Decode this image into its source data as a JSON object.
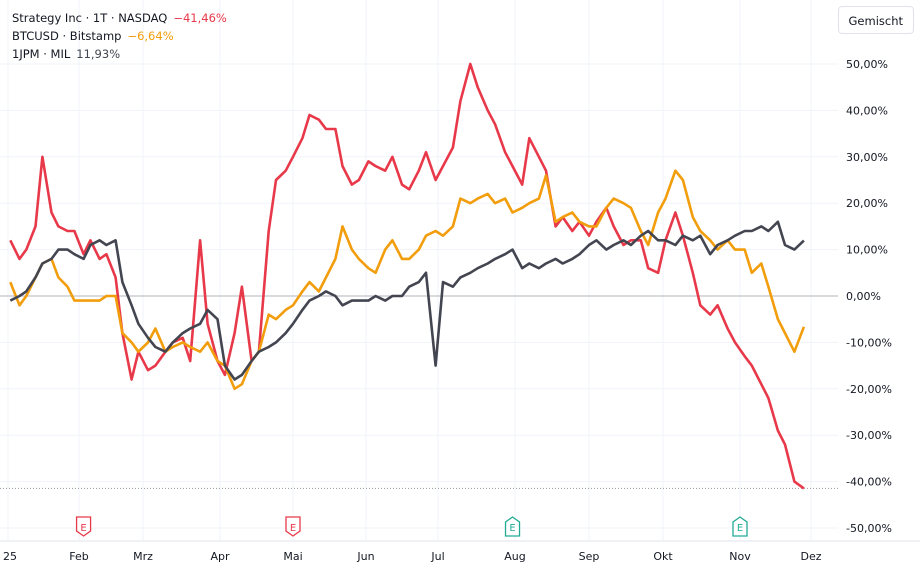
{
  "legend": [
    {
      "name": "Strategy Inc · 1T · NASDAQ",
      "value": "−41,46%",
      "color": "#e8394a"
    },
    {
      "name": "BTCUSD · Bitstamp",
      "value": "−6,64%",
      "color": "#f29d0c"
    },
    {
      "name": "1JPM · MIL",
      "value": "11,93%",
      "color": "#434651"
    }
  ],
  "toolbar": {
    "mode_button": "Gemischt"
  },
  "chart_data": {
    "type": "line",
    "yunit": "%",
    "ylim": [
      -50,
      50
    ],
    "yticks": [
      "50,00%",
      "40,00%",
      "30,00%",
      "20,00%",
      "10,00%",
      "0,00%",
      "-10,00%",
      "-20,00%",
      "-30,00%",
      "-40,00%",
      "-50,00%"
    ],
    "ytick_values": [
      50,
      40,
      30,
      20,
      10,
      0,
      -10,
      -20,
      -30,
      -40,
      -50
    ],
    "xticks": [
      {
        "label": "25",
        "date": "2025-01-01"
      },
      {
        "label": "Feb",
        "date": "2025-02-01"
      },
      {
        "label": "Mrz",
        "date": "2025-03-01"
      },
      {
        "label": "Apr",
        "date": "2025-04-01"
      },
      {
        "label": "Mai",
        "date": "2025-05-01"
      },
      {
        "label": "Jun",
        "date": "2025-06-01"
      },
      {
        "label": "Jul",
        "date": "2025-07-01"
      },
      {
        "label": "Aug",
        "date": "2025-08-01"
      },
      {
        "label": "Sep",
        "date": "2025-09-01"
      },
      {
        "label": "Okt",
        "date": "2025-10-01"
      },
      {
        "label": "Nov",
        "date": "2025-11-01"
      },
      {
        "label": "Dez",
        "date": "2025-12-01"
      }
    ],
    "grid": true,
    "legend_position": "top-left",
    "earnings_markers": [
      {
        "label": "E",
        "date": "2025-02-03",
        "color": "#e8394a"
      },
      {
        "label": "E",
        "date": "2025-05-01",
        "color": "#e8394a"
      },
      {
        "label": "E",
        "date": "2025-07-31",
        "color": "#22ab94"
      },
      {
        "label": "E",
        "date": "2025-11-01",
        "color": "#22ab94"
      }
    ],
    "last_value_line": -41.46,
    "x": [
      "2025-01-02",
      "2025-01-06",
      "2025-01-09",
      "2025-01-13",
      "2025-01-16",
      "2025-01-20",
      "2025-01-23",
      "2025-01-27",
      "2025-01-30",
      "2025-02-03",
      "2025-02-06",
      "2025-02-10",
      "2025-02-13",
      "2025-02-17",
      "2025-02-20",
      "2025-02-24",
      "2025-02-27",
      "2025-03-03",
      "2025-03-06",
      "2025-03-10",
      "2025-03-13",
      "2025-03-17",
      "2025-03-20",
      "2025-03-24",
      "2025-03-27",
      "2025-03-31",
      "2025-04-03",
      "2025-04-07",
      "2025-04-10",
      "2025-04-14",
      "2025-04-17",
      "2025-04-21",
      "2025-04-24",
      "2025-04-28",
      "2025-05-01",
      "2025-05-05",
      "2025-05-08",
      "2025-05-12",
      "2025-05-15",
      "2025-05-19",
      "2025-05-22",
      "2025-05-26",
      "2025-05-29",
      "2025-06-02",
      "2025-06-05",
      "2025-06-09",
      "2025-06-12",
      "2025-06-16",
      "2025-06-19",
      "2025-06-23",
      "2025-06-26",
      "2025-06-30",
      "2025-07-03",
      "2025-07-07",
      "2025-07-10",
      "2025-07-14",
      "2025-07-17",
      "2025-07-21",
      "2025-07-24",
      "2025-07-28",
      "2025-07-31",
      "2025-08-04",
      "2025-08-07",
      "2025-08-11",
      "2025-08-14",
      "2025-08-18",
      "2025-08-21",
      "2025-08-25",
      "2025-08-28",
      "2025-09-01",
      "2025-09-04",
      "2025-09-08",
      "2025-09-11",
      "2025-09-15",
      "2025-09-18",
      "2025-09-22",
      "2025-09-25",
      "2025-09-29",
      "2025-10-02",
      "2025-10-06",
      "2025-10-09",
      "2025-10-13",
      "2025-10-16",
      "2025-10-20",
      "2025-10-23",
      "2025-10-27",
      "2025-10-30",
      "2025-11-03",
      "2025-11-06",
      "2025-11-10",
      "2025-11-13",
      "2025-11-17",
      "2025-11-20",
      "2025-11-24",
      "2025-11-28"
    ],
    "series": [
      {
        "name": "Strategy Inc · 1T · NASDAQ",
        "color": "#e8394a",
        "values": [
          12,
          8,
          10,
          15,
          30,
          18,
          15,
          14,
          14,
          9,
          12,
          8,
          9,
          4,
          -8,
          -18,
          -12,
          -16,
          -15,
          -12,
          -10,
          -9,
          -14,
          12,
          -6,
          -14,
          -17,
          -8,
          2,
          -14,
          -12,
          14,
          25,
          27,
          30,
          34,
          39,
          38,
          36,
          36,
          28,
          24,
          25,
          29,
          28,
          27,
          30,
          24,
          23,
          27,
          31,
          25,
          28,
          32,
          42,
          50,
          45,
          40,
          37,
          31,
          28,
          24,
          34,
          30,
          27,
          15,
          17,
          14,
          16,
          13,
          16,
          19,
          15,
          11,
          12,
          12,
          6,
          5,
          12,
          18,
          13,
          5,
          -2,
          -4,
          -2,
          -7,
          -10,
          -13,
          -15,
          -19,
          -22,
          -29,
          -32,
          -40,
          -41.46
        ]
      },
      {
        "name": "BTCUSD · Bitstamp",
        "color": "#f29d0c",
        "values": [
          3,
          -2,
          0,
          4,
          7,
          8,
          4,
          2,
          -1,
          -1,
          -1,
          -1,
          0,
          0,
          -8,
          -10,
          -12,
          -10,
          -7,
          -12,
          -11,
          -10,
          -11,
          -12,
          -10,
          -14,
          -15,
          -20,
          -19,
          -14,
          -12,
          -4,
          -5,
          -3,
          -2,
          1,
          3,
          1,
          4,
          8,
          15,
          10,
          8,
          6,
          5,
          10,
          12,
          8,
          8,
          10,
          13,
          14,
          13,
          15,
          21,
          20,
          21,
          22,
          20,
          21,
          18,
          19,
          20,
          21,
          26,
          16,
          17,
          18,
          16,
          15,
          15,
          19,
          21,
          20,
          19,
          14,
          11,
          18,
          21,
          27,
          25,
          17,
          14,
          12,
          10,
          12,
          10,
          10,
          5,
          7,
          2,
          -5,
          -8,
          -12,
          -6.64
        ]
      },
      {
        "name": "1JPM · MIL",
        "color": "#434651",
        "values": [
          -1,
          0,
          1,
          4,
          7,
          8,
          10,
          10,
          9,
          8,
          11,
          12,
          11,
          12,
          3,
          -2,
          -6,
          -9,
          -11,
          -12,
          -10,
          -8,
          -7,
          -6,
          -3,
          -5,
          -15,
          -18,
          -17,
          -14,
          -12,
          -11,
          -10,
          -8,
          -6,
          -3,
          -1,
          0,
          1,
          0,
          -2,
          -1,
          -1,
          -1,
          0,
          -1,
          0,
          0,
          2,
          3,
          5,
          -15,
          3,
          2,
          4,
          5,
          6,
          7,
          8,
          9,
          10,
          6,
          7,
          6,
          7,
          8,
          7,
          8,
          9,
          11,
          12,
          10,
          11,
          12,
          11,
          13,
          14,
          12,
          12,
          11,
          13,
          12,
          13,
          9,
          11,
          12,
          13,
          14,
          14,
          15,
          14,
          16,
          11,
          10,
          11.93
        ]
      }
    ]
  }
}
